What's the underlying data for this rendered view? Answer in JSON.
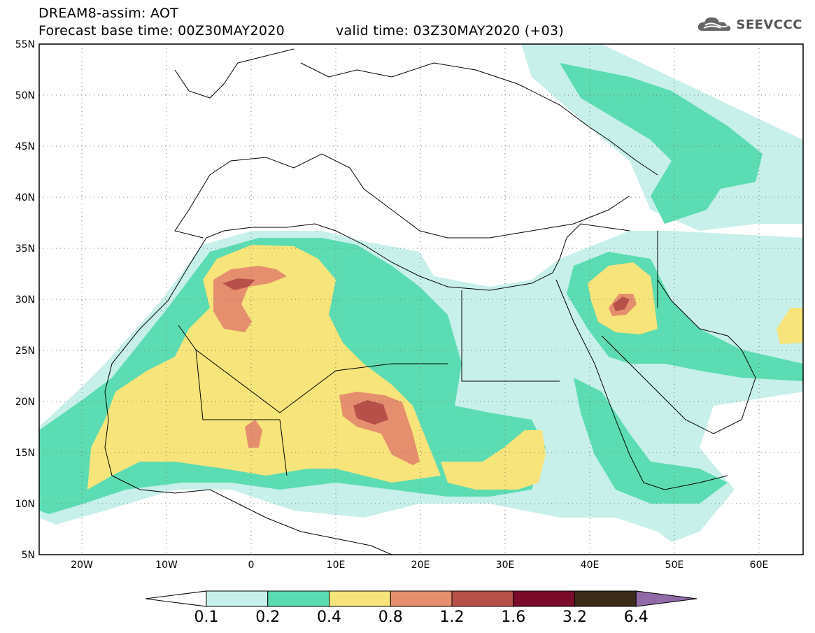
{
  "header": {
    "model_line": "DREAM8-assim: AOT",
    "base_time_line": "Forecast base time: 00Z30MAY2020",
    "valid_time_line": "valid time: 03Z30MAY2020 (+03)"
  },
  "logo": {
    "text": "SEEVCCC",
    "icon": "cloud-logo-icon"
  },
  "map": {
    "variable": "Aerosol optical thickness",
    "lon_range": [
      -25,
      65
    ],
    "lat_range": [
      5,
      55
    ],
    "lat_labels": [
      "55N",
      "50N",
      "45N",
      "40N",
      "35N",
      "30N",
      "25N",
      "20N",
      "15N",
      "10N",
      "5N"
    ],
    "lon_labels": [
      "20W",
      "10W",
      "0",
      "10E",
      "20E",
      "30E",
      "40E",
      "50E",
      "60E"
    ],
    "gridlines": "dotted"
  },
  "colorbar": {
    "levels": [
      "0.1",
      "0.2",
      "0.4",
      "0.8",
      "1.2",
      "1.6",
      "3.2",
      "6.4"
    ],
    "colors": [
      "#ffffff",
      "#c7f0ea",
      "#5cdcb2",
      "#f7e47a",
      "#e58f6e",
      "#b8504a",
      "#7a0b2a",
      "#3b2a18",
      "#8f6aa6"
    ]
  }
}
